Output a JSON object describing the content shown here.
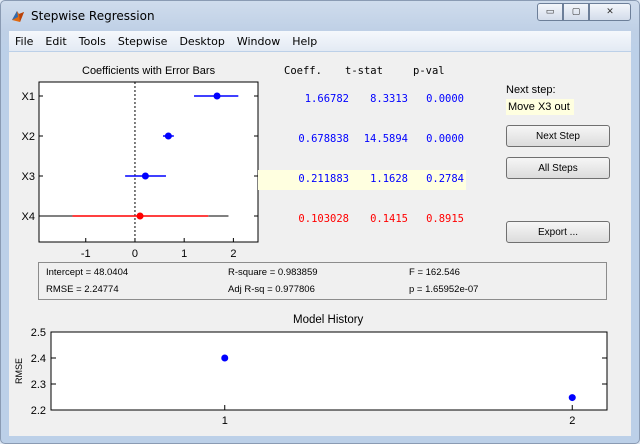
{
  "window": {
    "title": "Stepwise Regression",
    "buttons": {
      "minimize": "▭",
      "maximize": "▢",
      "close": "✕"
    }
  },
  "menu": [
    "File",
    "Edit",
    "Tools",
    "Stepwise",
    "Desktop",
    "Window",
    "Help"
  ],
  "coef_panel": {
    "title": "Coefficients with Error Bars",
    "x_ticks": [
      "-1",
      "0",
      "1",
      "2"
    ],
    "rows": [
      {
        "label": "X1",
        "coeff": "1.66782",
        "tstat": "8.3313",
        "pval": "0.0000",
        "color": "#0000ff",
        "highlight": false,
        "estimate": 1.66782,
        "ci_low": 1.2,
        "ci_high": 2.1
      },
      {
        "label": "X2",
        "coeff": "0.678838",
        "tstat": "14.5894",
        "pval": "0.0000",
        "color": "#0000ff",
        "highlight": false,
        "estimate": 0.678838,
        "ci_low": 0.57,
        "ci_high": 0.79
      },
      {
        "label": "X3",
        "coeff": "0.211883",
        "tstat": "1.1628",
        "pval": "0.2784",
        "color": "#0000ff",
        "highlight": true,
        "estimate": 0.211883,
        "ci_low": -0.2,
        "ci_high": 0.63
      },
      {
        "label": "X4",
        "coeff": "0.103028",
        "tstat": "0.1415",
        "pval": "0.8915",
        "color": "#ff0000",
        "highlight": false,
        "estimate": 0.103028,
        "ci_low": -1.27,
        "ci_high": 1.49
      }
    ],
    "x_range": [
      -1.95,
      2.5
    ],
    "whisker_ends": [
      -1.95,
      1.9
    ]
  },
  "table_headers": {
    "coeff": "Coeff.",
    "tstat": "t-stat",
    "pval": "p-val"
  },
  "next_step": {
    "label": "Next step:",
    "value": "Move X3 out"
  },
  "buttons": {
    "next_step": "Next Step",
    "all_steps": "All Steps",
    "export": "Export ..."
  },
  "stats": {
    "intercept": "Intercept = 48.0404",
    "rmse": "RMSE = 2.24774",
    "rsquare": "R-square = 0.983859",
    "adj_rsq": "Adj R-sq = 0.977806",
    "f": "F = 162.546",
    "p": "p = 1.65952e-07"
  },
  "chart_data": {
    "type": "scatter",
    "title": "Model History",
    "ylabel": "RMSE",
    "x": [
      1,
      2
    ],
    "values": [
      2.4,
      2.24774
    ],
    "x_ticks": [
      "1",
      "2"
    ],
    "y_ticks": [
      "2.2",
      "2.3",
      "2.4",
      "2.5"
    ],
    "ylim": [
      2.2,
      2.5
    ],
    "xlim": [
      0.5,
      2.1
    ],
    "color": "#0000ff"
  }
}
